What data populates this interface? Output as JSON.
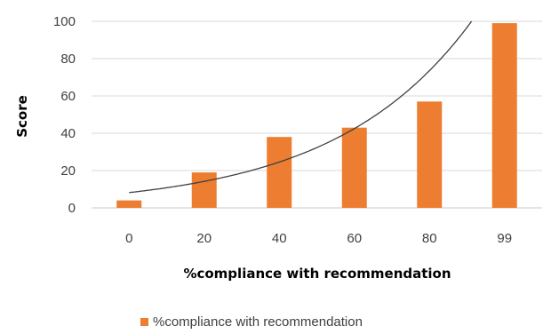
{
  "chart_data": {
    "type": "bar",
    "categories": [
      "0",
      "20",
      "40",
      "60",
      "80",
      "99"
    ],
    "series": [
      {
        "name": "%compliance with recommendation",
        "values": [
          4,
          19,
          38,
          43,
          57,
          99
        ],
        "color": "#ED7D31"
      }
    ],
    "trendline": {
      "type": "exponential",
      "a": 8.2,
      "b": 0.0277,
      "color": "#404040"
    },
    "xlabel": "%compliance with recommendation",
    "ylabel": "Score",
    "ylim": [
      0,
      100
    ],
    "yticks": [
      0,
      20,
      40,
      60,
      80,
      100
    ],
    "grid": true,
    "legend_position": "bottom"
  }
}
